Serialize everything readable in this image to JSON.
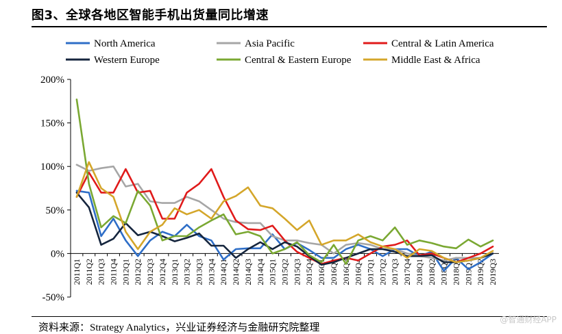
{
  "header": {
    "title": "图3、全球各地区智能手机出货量同比增速"
  },
  "footer": {
    "source": "资料来源：Strategy Analytics，兴业证券经济与金融研究院整理",
    "watermark": "@智通财经APP"
  },
  "chart_data": {
    "type": "line",
    "title": "图3、全球各地区智能手机出货量同比增速",
    "xlabel": "",
    "ylabel": "",
    "ylim": [
      -50,
      200
    ],
    "yticks": [
      -50,
      0,
      50,
      100,
      150,
      200
    ],
    "ytick_labels": [
      "-50%",
      "0%",
      "50%",
      "100%",
      "150%",
      "200%"
    ],
    "legend_position": "top",
    "categories": [
      "2011Q1",
      "2011Q2",
      "2011Q3",
      "2011Q4",
      "2012Q1",
      "2012Q2",
      "2012Q3",
      "2012Q4",
      "2013Q1",
      "2013Q2",
      "2013Q3",
      "2013Q4",
      "2014Q1",
      "2014Q2",
      "2014Q3",
      "2014Q4",
      "2015Q1",
      "2015Q2",
      "2015Q3",
      "2015Q4",
      "2016Q1",
      "2016Q2",
      "2016Q3",
      "2016Q4",
      "2017Q1",
      "2017Q2",
      "2017Q3",
      "2017Q4",
      "2018Q1",
      "2018Q2",
      "2018Q3",
      "2018Q4",
      "2019Q1",
      "2019Q2",
      "2019Q3"
    ],
    "series": [
      {
        "name": "North America",
        "color": "#2e6ec7",
        "values": [
          72,
          70,
          20,
          40,
          15,
          -3,
          15,
          25,
          20,
          33,
          20,
          15,
          -7,
          5,
          6,
          6,
          22,
          5,
          12,
          4,
          -5,
          -5,
          5,
          10,
          5,
          -3,
          5,
          5,
          -3,
          2,
          -20,
          -5,
          -18,
          -10,
          0
        ]
      },
      {
        "name": "Asia Pacific",
        "color": "#a6a6a6",
        "values": [
          102,
          95,
          98,
          100,
          77,
          80,
          60,
          58,
          58,
          65,
          60,
          50,
          40,
          36,
          35,
          35,
          20,
          15,
          15,
          12,
          10,
          0,
          10,
          12,
          10,
          5,
          5,
          0,
          -3,
          -5,
          -8,
          -5,
          -5,
          -5,
          0
        ]
      },
      {
        "name": "Central & Latin America",
        "color": "#e01a1a",
        "values": [
          65,
          93,
          70,
          70,
          97,
          70,
          72,
          40,
          40,
          70,
          80,
          97,
          65,
          38,
          28,
          27,
          32,
          15,
          2,
          -5,
          -12,
          -8,
          -5,
          -8,
          0,
          8,
          10,
          15,
          -2,
          0,
          -5,
          -10,
          -5,
          0,
          8
        ]
      },
      {
        "name": "Western Europe",
        "color": "#15253d",
        "values": [
          70,
          53,
          10,
          17,
          35,
          21,
          25,
          20,
          14,
          18,
          23,
          9,
          9,
          -5,
          5,
          13,
          5,
          13,
          8,
          -3,
          -13,
          -10,
          -5,
          0,
          5,
          5,
          2,
          -3,
          -3,
          -2,
          -10,
          -10,
          -8,
          -5,
          0
        ]
      },
      {
        "name": "Central & Eastern Europe",
        "color": "#7aa832",
        "values": [
          177,
          80,
          30,
          43,
          35,
          72,
          55,
          15,
          20,
          20,
          30,
          38,
          45,
          22,
          25,
          20,
          0,
          5,
          13,
          -2,
          -10,
          10,
          -12,
          15,
          20,
          15,
          30,
          10,
          15,
          12,
          8,
          6,
          16,
          8,
          15
        ]
      },
      {
        "name": "Middle East & Africa",
        "color": "#d4a62a",
        "values": [
          65,
          105,
          75,
          65,
          25,
          5,
          25,
          33,
          52,
          45,
          50,
          40,
          60,
          66,
          76,
          55,
          52,
          40,
          27,
          38,
          10,
          15,
          15,
          22,
          13,
          8,
          5,
          -5,
          5,
          3,
          -5,
          -10,
          -8,
          -5,
          3
        ]
      }
    ]
  }
}
